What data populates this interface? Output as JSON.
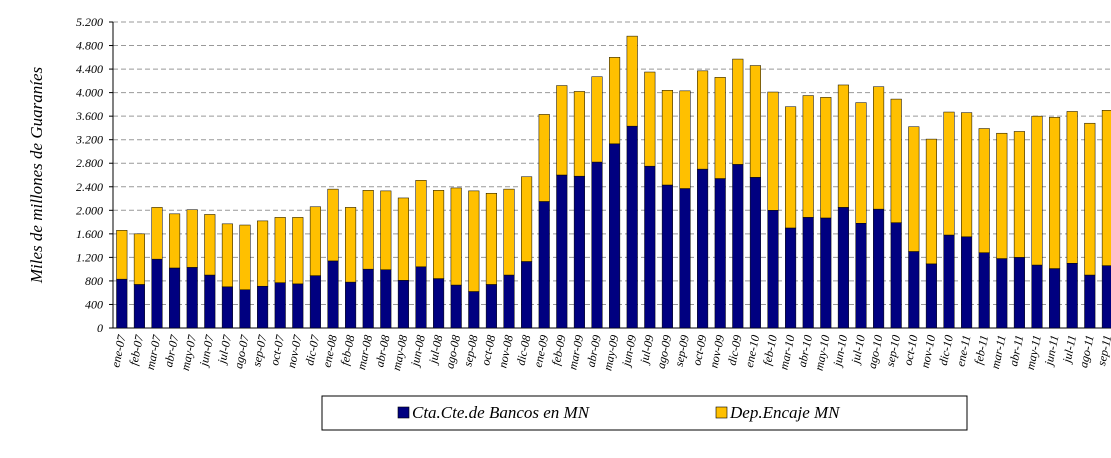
{
  "chart_data": {
    "type": "stacked_bar",
    "ylabel": "Miles de millones de Guaraníes",
    "categories": [
      "ene-07",
      "feb-07",
      "mar-07",
      "abr-07",
      "may-07",
      "jun-07",
      "jul-07",
      "ago-07",
      "sep-07",
      "oct-07",
      "nov-07",
      "dic-07",
      "ene-08",
      "feb-08",
      "mar-08",
      "abr-08",
      "may-08",
      "jun-08",
      "jul-08",
      "ago-08",
      "sep-08",
      "oct-08",
      "nov-08",
      "dic-08",
      "ene-09",
      "feb-09",
      "mar-09",
      "abr-09",
      "may-09",
      "jun-09",
      "jul-09",
      "ago-09",
      "sep-09",
      "oct-09",
      "nov-09",
      "dic-09",
      "ene-10",
      "feb-10",
      "mar-10",
      "abr-10",
      "may-10",
      "jun-10",
      "jul-10",
      "ago-10",
      "sep-10",
      "oct-10",
      "nov-10",
      "dic-10",
      "ene-11",
      "feb-11",
      "mar-11",
      "abr-11",
      "may-11",
      "jun-11",
      "jul-11",
      "ago-11",
      "sep-11"
    ],
    "series": [
      {
        "name": "Cta.Cte.de Bancos en MN",
        "color": "#000080",
        "values": [
          830,
          740,
          1170,
          1020,
          1030,
          900,
          700,
          650,
          710,
          770,
          750,
          890,
          1140,
          780,
          1000,
          990,
          810,
          1040,
          840,
          730,
          620,
          740,
          900,
          1130,
          2150,
          2600,
          2580,
          2820,
          3130,
          3430,
          2750,
          2430,
          2370,
          2700,
          2540,
          2780,
          2560,
          2000,
          1700,
          1880,
          1870,
          2050,
          1780,
          2020,
          1790,
          1300,
          1090,
          1580,
          1550,
          1280,
          1180,
          1200,
          1070,
          1010,
          1100,
          900,
          1060
        ]
      },
      {
        "name": "Dep.Encaje MN",
        "color": "#FFC000",
        "values": [
          830,
          860,
          880,
          920,
          980,
          1030,
          1070,
          1100,
          1110,
          1110,
          1130,
          1170,
          1220,
          1270,
          1340,
          1340,
          1400,
          1470,
          1500,
          1650,
          1710,
          1550,
          1460,
          1440,
          1480,
          1520,
          1440,
          1450,
          1470,
          1530,
          1600,
          1610,
          1660,
          1670,
          1720,
          1790,
          1900,
          2010,
          2060,
          2070,
          2050,
          2080,
          2050,
          2080,
          2100,
          2120,
          2120,
          2090,
          2110,
          2110,
          2130,
          2140,
          2530,
          2570,
          2580,
          2580,
          2640
        ]
      }
    ],
    "ylim": [
      0,
      5200
    ],
    "yticks": [
      0,
      400,
      800,
      {
        "value": 1200,
        "label": "1.200"
      },
      {
        "value": 1600,
        "label": "1.600"
      },
      {
        "value": 2000,
        "label": "2.000"
      },
      {
        "value": 2400,
        "label": "2.400"
      },
      {
        "value": 2800,
        "label": "2.800"
      },
      {
        "value": 3200,
        "label": "3.200"
      },
      {
        "value": 3600,
        "label": "3.600"
      },
      {
        "value": 4000,
        "label": "4.000"
      },
      {
        "value": 4400,
        "label": "4.400"
      },
      {
        "value": 4800,
        "label": "4.800"
      },
      {
        "value": 5200,
        "label": "5.200"
      }
    ],
    "grid": true,
    "legend": "bottom"
  }
}
